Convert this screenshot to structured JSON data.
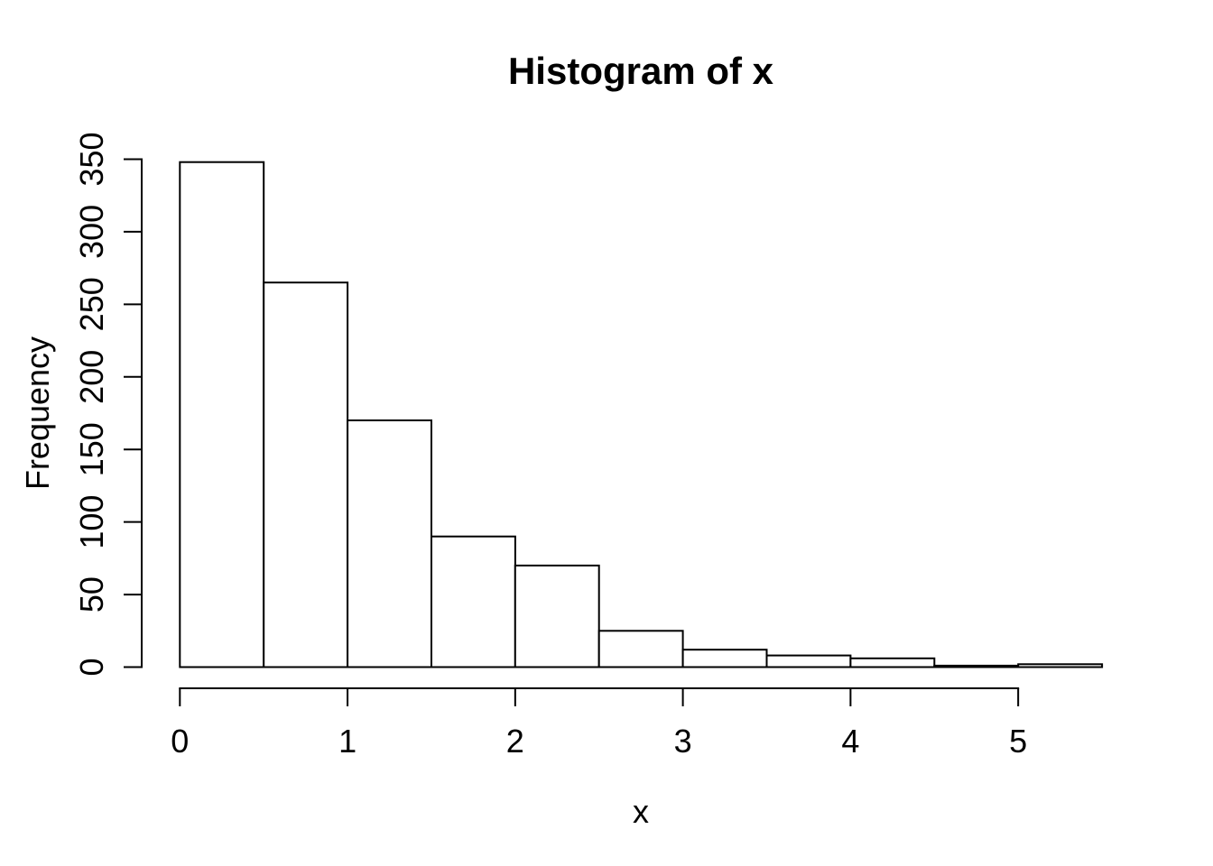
{
  "chart_data": {
    "type": "bar",
    "subtype": "histogram",
    "title": "Histogram of x",
    "xlabel": "x",
    "ylabel": "Frequency",
    "bin_edges": [
      0,
      0.5,
      1.0,
      1.5,
      2.0,
      2.5,
      3.0,
      3.5,
      4.0,
      4.5,
      5.0,
      5.5
    ],
    "counts": [
      348,
      265,
      170,
      90,
      70,
      25,
      12,
      8,
      6,
      1,
      2
    ],
    "x_ticks": [
      0,
      1,
      2,
      3,
      4,
      5
    ],
    "y_ticks": [
      0,
      50,
      100,
      150,
      200,
      250,
      300,
      350
    ],
    "xlim": [
      0,
      5.5
    ],
    "ylim": [
      0,
      350
    ],
    "grid": false,
    "legend": false,
    "colors": {
      "background": "#ffffff",
      "bar_fill": "#ffffff",
      "bar_stroke": "#000000",
      "axis": "#000000",
      "text": "#000000"
    }
  }
}
